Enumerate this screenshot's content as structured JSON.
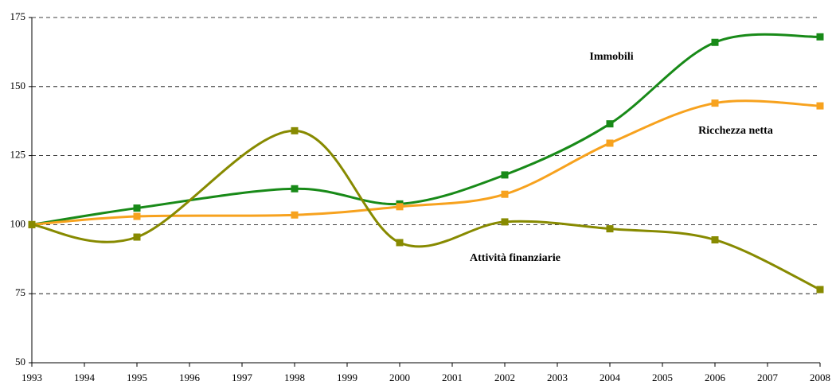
{
  "chart_data": {
    "type": "line",
    "x": [
      1993,
      1995,
      1998,
      2000,
      2002,
      2004,
      2006,
      2008
    ],
    "series": [
      {
        "name": "Immobili",
        "color": "#188a18",
        "values": [
          100,
          106,
          113,
          107.5,
          118,
          136.5,
          166,
          168
        ]
      },
      {
        "name": "Ricchezza netta",
        "color": "#f7a21e",
        "values": [
          100,
          103,
          103.5,
          106.5,
          111,
          129.5,
          144,
          143
        ]
      },
      {
        "name": "Attività finanziarie",
        "color": "#878a00",
        "values": [
          100,
          95.5,
          134,
          93.5,
          101,
          98.5,
          94.5,
          76.5
        ]
      }
    ],
    "xlim": [
      1993,
      2008
    ],
    "xticks": [
      1993,
      1994,
      1995,
      1996,
      1997,
      1998,
      1999,
      2000,
      2001,
      2002,
      2003,
      2004,
      2005,
      2006,
      2007,
      2008
    ],
    "ylim": [
      50,
      175
    ],
    "yticks": [
      50,
      75,
      100,
      125,
      150,
      175
    ],
    "grid": true
  }
}
